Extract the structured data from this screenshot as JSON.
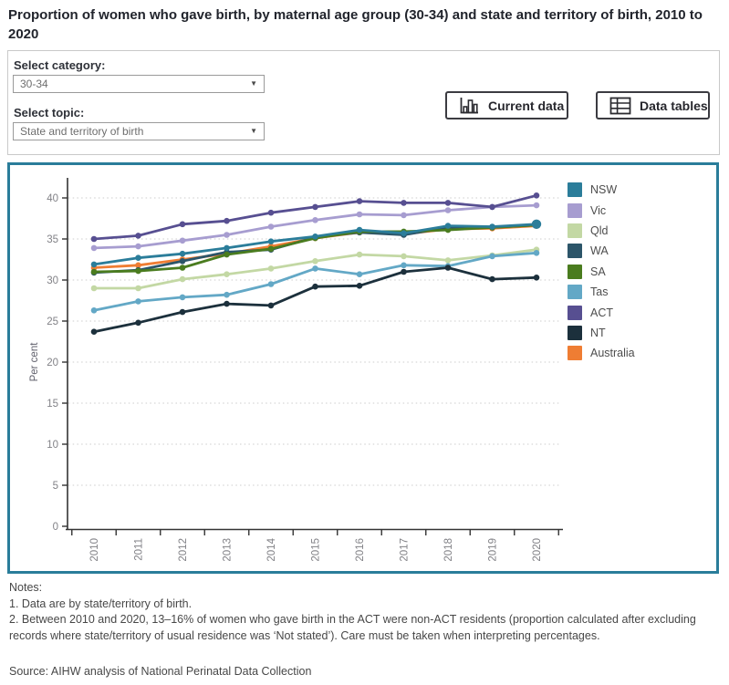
{
  "page": {
    "title": "Proportion of women who gave birth, by maternal age group (30-34) and state and territory of birth, 2010 to 2020"
  },
  "controls": {
    "category_label": "Select category:",
    "category_value": "30-34",
    "topic_label": "Select topic:",
    "topic_value": "State and territory of birth",
    "caret": "▼",
    "current_data_button": "Current data",
    "data_tables_button": "Data tables"
  },
  "chart_data": {
    "type": "line",
    "title": "Proportion of women who gave birth, by maternal age group (30-34) and state and territory of birth, 2010 to 2020",
    "xlabel": "",
    "ylabel": "Per cent",
    "x": [
      "2010",
      "2011",
      "2012",
      "2013",
      "2014",
      "2015",
      "2016",
      "2017",
      "2018",
      "2019",
      "2020"
    ],
    "ylim": [
      0,
      40
    ],
    "ytick_step": 5,
    "grid": "horizontal-dotted",
    "legend_position": "right",
    "series": [
      {
        "name": "NSW",
        "color": "#2b7d9a",
        "end_marker": "large",
        "values": [
          31.9,
          32.7,
          33.2,
          33.9,
          34.7,
          35.3,
          36.1,
          35.7,
          36.6,
          36.5,
          36.8
        ]
      },
      {
        "name": "Vic",
        "color": "#a79dd0",
        "values": [
          33.9,
          34.1,
          34.8,
          35.5,
          36.5,
          37.3,
          38.0,
          37.9,
          38.5,
          38.9,
          39.1
        ]
      },
      {
        "name": "Qld",
        "color": "#c3d8a4",
        "values": [
          29.0,
          29.0,
          30.1,
          30.7,
          31.4,
          32.3,
          33.1,
          32.9,
          32.4,
          33.0,
          33.7
        ]
      },
      {
        "name": "WA",
        "color": "#2c5569",
        "values": [
          30.9,
          31.2,
          32.3,
          33.4,
          33.7,
          35.2,
          35.8,
          35.5,
          36.4,
          36.4,
          36.7
        ]
      },
      {
        "name": "SA",
        "color": "#4a7c1f",
        "values": [
          31.0,
          31.1,
          31.5,
          33.1,
          33.8,
          35.1,
          35.9,
          35.9,
          36.1,
          36.4,
          36.7
        ]
      },
      {
        "name": "Tas",
        "color": "#63a8c6",
        "values": [
          26.3,
          27.4,
          27.9,
          28.2,
          29.5,
          31.4,
          30.7,
          31.8,
          31.7,
          32.9,
          33.3
        ]
      },
      {
        "name": "ACT",
        "color": "#574f91",
        "values": [
          35.0,
          35.4,
          36.8,
          37.2,
          38.2,
          38.9,
          39.6,
          39.4,
          39.4,
          38.9,
          40.3
        ]
      },
      {
        "name": "NT",
        "color": "#1c303c",
        "values": [
          23.7,
          24.8,
          26.1,
          27.1,
          26.9,
          29.2,
          29.3,
          31.0,
          31.5,
          30.1,
          30.3
        ]
      },
      {
        "name": "Australia",
        "color": "#ef7d33",
        "values": [
          31.5,
          31.8,
          32.5,
          33.2,
          34.1,
          35.1,
          35.8,
          35.6,
          36.2,
          36.3,
          36.6
        ]
      }
    ],
    "draw_order": [
      "Vic",
      "ACT",
      "Australia",
      "Qld",
      "Tas",
      "NT",
      "WA",
      "SA",
      "NSW"
    ]
  },
  "notes": {
    "heading": "Notes:",
    "items": [
      "1. Data are by state/territory of birth.",
      "2. Between 2010 and 2020, 13–16% of women who gave birth in the ACT were non-ACT residents (proportion calculated after excluding records where state/territory of usual residence was ‘Not stated’). Care must be taken when interpreting percentages."
    ]
  },
  "source": "Source: AIHW analysis of National Perinatal Data Collection",
  "colors": {
    "panel_border": "#2a7d9a",
    "grid_line": "#d6d6d6",
    "axis_line": "#333333",
    "tick_label": "#828287",
    "axis_title": "#5f5f6b"
  }
}
